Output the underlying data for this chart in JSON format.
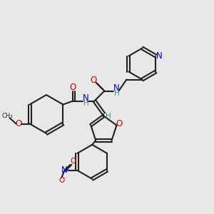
{
  "bg_color": "#e8e8e8",
  "bond_color": "#222222",
  "N_color": "#0000cc",
  "O_color": "#cc0000",
  "H_color": "#4a8a8a",
  "font_size": 7.5,
  "line_width": 1.5,
  "figsize": [
    3.0,
    3.0
  ],
  "dpi": 100,
  "xlim": [
    0,
    300
  ],
  "ylim": [
    0,
    300
  ]
}
